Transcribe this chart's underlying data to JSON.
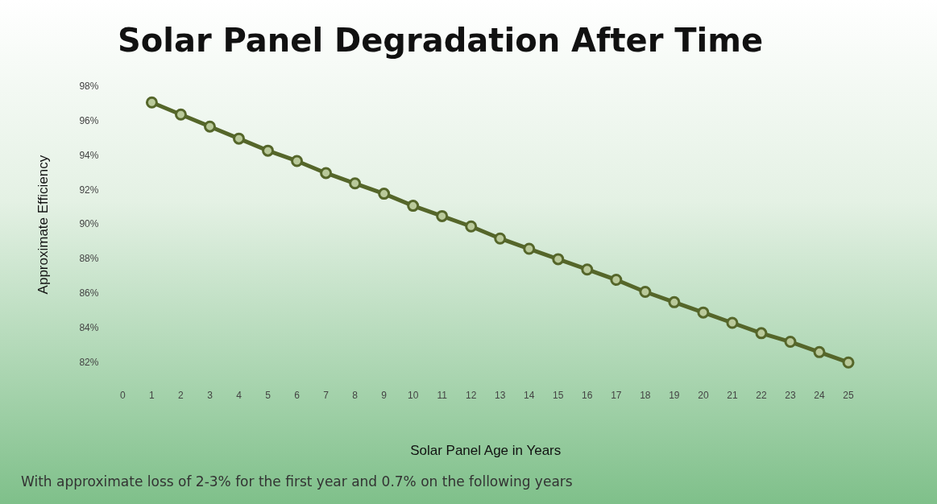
{
  "chart_data": {
    "type": "line",
    "title": "Solar Panel Degradation After Time",
    "xlabel": "Solar Panel Age in Years",
    "ylabel": "Approximate Efficiency",
    "x": [
      1,
      2,
      3,
      4,
      5,
      6,
      7,
      8,
      9,
      10,
      11,
      12,
      13,
      14,
      15,
      16,
      17,
      18,
      19,
      20,
      21,
      22,
      23,
      24,
      25
    ],
    "series": [
      {
        "color": "#55662a",
        "values": [
          97.1,
          96.4,
          95.7,
          95.0,
          94.3,
          93.7,
          93.0,
          92.4,
          91.8,
          91.1,
          90.5,
          89.9,
          89.2,
          88.6,
          88.0,
          87.4,
          86.8,
          86.1,
          85.5,
          84.9,
          84.3,
          83.7,
          83.2,
          82.6,
          82.0
        ]
      }
    ],
    "xlim": [
      0,
      25
    ],
    "xticks": [
      0,
      1,
      2,
      3,
      4,
      5,
      6,
      7,
      8,
      9,
      10,
      11,
      12,
      13,
      14,
      15,
      16,
      17,
      18,
      19,
      20,
      21,
      22,
      23,
      24,
      25
    ],
    "ylim": [
      82,
      98
    ],
    "yticks": [
      {
        "value": 82,
        "label": "82%"
      },
      {
        "value": 84,
        "label": "84%"
      },
      {
        "value": 86,
        "label": "86%"
      },
      {
        "value": 88,
        "label": "88%"
      },
      {
        "value": 90,
        "label": "90%"
      },
      {
        "value": 92,
        "label": "92%"
      },
      {
        "value": 94,
        "label": "94%"
      },
      {
        "value": 96,
        "label": "96%"
      },
      {
        "value": 98,
        "label": "98%"
      }
    ],
    "grid": false,
    "legend": false,
    "marker": "circle",
    "line_style": "solid",
    "annotations": [
      "With approximate loss of 2-3% for the first year and 0.7% on the following years"
    ]
  }
}
